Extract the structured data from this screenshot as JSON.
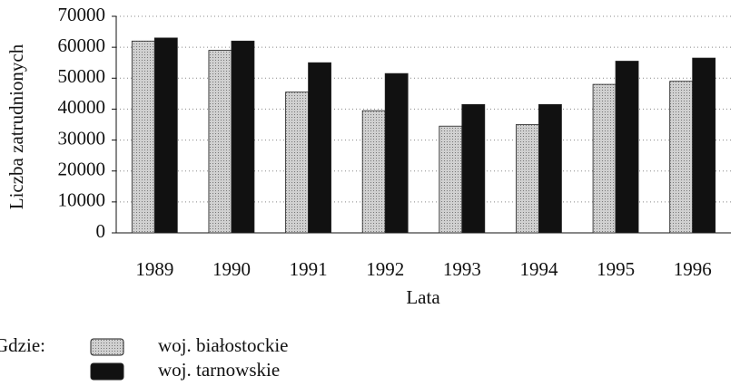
{
  "chart_data": {
    "type": "bar",
    "y_label": "Liczba zatrudnionych",
    "x_label": "Lata",
    "legend_title": "Gdzie:",
    "categories": [
      "1989",
      "1990",
      "1991",
      "1992",
      "1993",
      "1994",
      "1995",
      "1996"
    ],
    "series": [
      {
        "name": "woj. białostockie",
        "color": "#c4c4c4",
        "values": [
          62000,
          59000,
          45500,
          39500,
          34500,
          35000,
          48000,
          49000
        ]
      },
      {
        "name": "woj. tarnowskie",
        "color": "#111111",
        "values": [
          63000,
          62000,
          55000,
          51500,
          41500,
          41500,
          55500,
          56500
        ]
      }
    ],
    "ylim": [
      0,
      70000
    ],
    "yticks": [
      0,
      10000,
      20000,
      30000,
      40000,
      50000,
      60000,
      70000
    ],
    "grid": true
  }
}
